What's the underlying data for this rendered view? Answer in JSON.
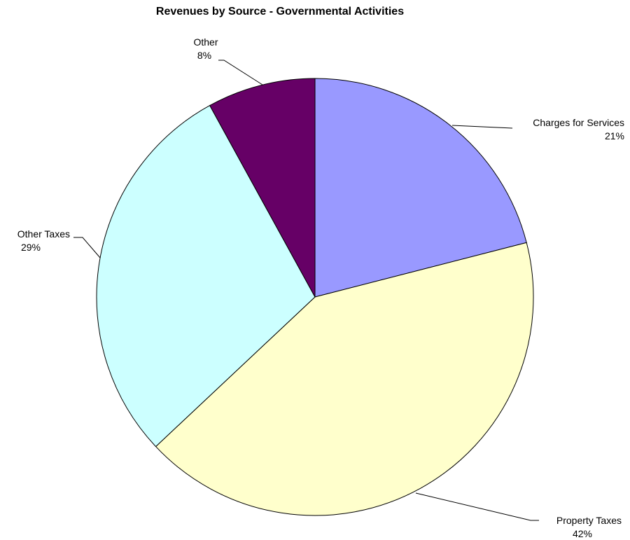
{
  "chart_data": {
    "type": "pie",
    "title": "Revenues by Source - Governmental Activities",
    "slices": [
      {
        "name": "Charges for Services",
        "label_name": "Charges  for Services",
        "value": 21,
        "label": "21%",
        "color": "#9999ff"
      },
      {
        "name": "Property Taxes",
        "label_name": "Property  Taxes",
        "value": 42,
        "label": "42%",
        "color": "#ffffcc"
      },
      {
        "name": "Other Taxes",
        "label_name": "Other Taxes",
        "value": 29,
        "label": "29%",
        "color": "#ccffff"
      },
      {
        "name": "Other",
        "label_name": "Other",
        "value": 8,
        "label": "8%",
        "color": "#660066"
      }
    ],
    "start_angle_deg": 0,
    "direction": "clockwise",
    "legend": "none"
  }
}
